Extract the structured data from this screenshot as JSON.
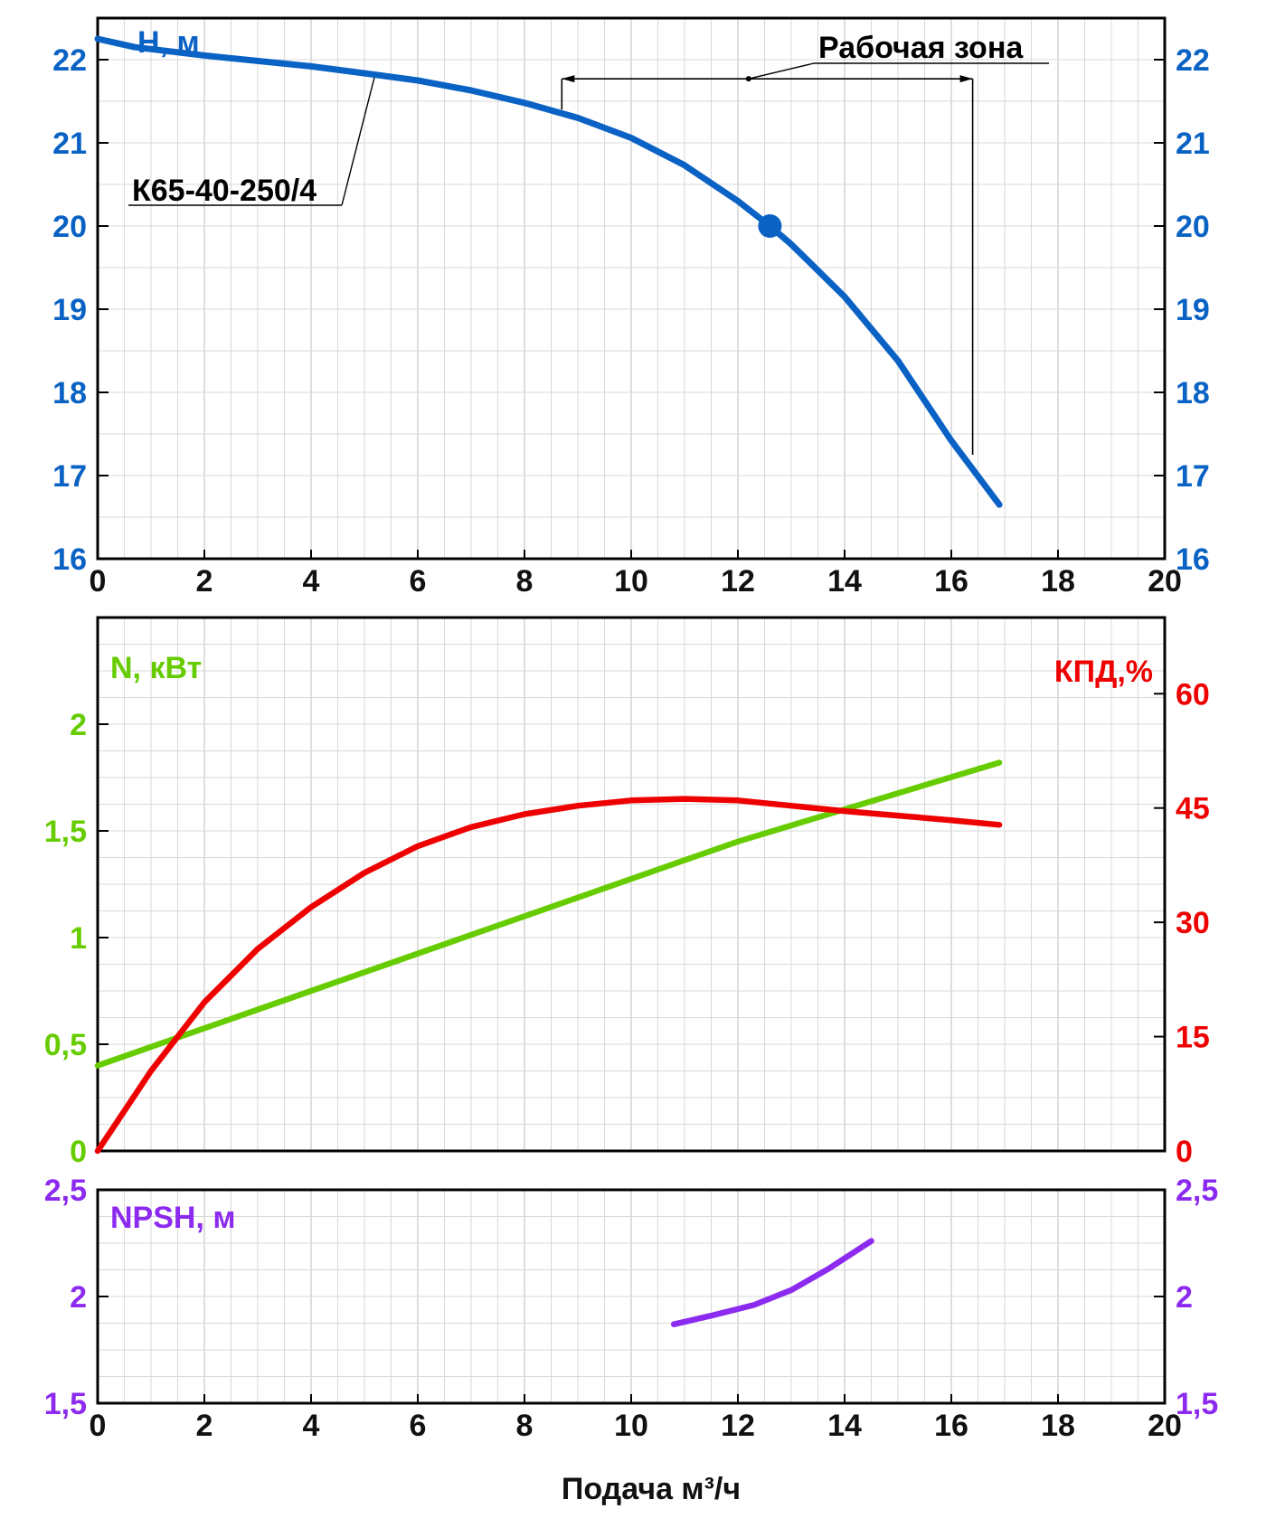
{
  "chart_data": [
    {
      "id": "head",
      "type": "line",
      "ylabel": "H, м",
      "xlim": [
        0,
        20
      ],
      "ylim": [
        16,
        22.5
      ],
      "xticks": [
        "0",
        "2",
        "4",
        "6",
        "8",
        "10",
        "12",
        "14",
        "16",
        "18",
        "20"
      ],
      "yticks": [
        "16",
        "17",
        "18",
        "19",
        "20",
        "21",
        "22"
      ],
      "grid": true,
      "color": "#0a62c4",
      "series": [
        {
          "name": "К65-40-250/4",
          "x": [
            0,
            0.7,
            2,
            4,
            5.2,
            6,
            7,
            8,
            9,
            10,
            11,
            12,
            12.6,
            13,
            14,
            15,
            16,
            16.9
          ],
          "y": [
            22.25,
            22.15,
            22.05,
            21.92,
            21.82,
            21.75,
            21.63,
            21.48,
            21.3,
            21.06,
            20.73,
            20.3,
            20.0,
            19.78,
            19.15,
            18.38,
            17.42,
            16.65
          ]
        }
      ],
      "operating_point": {
        "x": 12.6,
        "y": 20.0
      },
      "annotations": {
        "model": "К65-40-250/4",
        "working_zone": "Рабочая зона",
        "working_zone_range": [
          8.7,
          16.4
        ]
      }
    },
    {
      "id": "power_efficiency",
      "type": "line",
      "xlim": [
        0,
        20
      ],
      "ylim_left": [
        0,
        2.5
      ],
      "ylim_right": [
        0,
        70
      ],
      "ylabel_left": "N, кВт",
      "ylabel_right": "КПД,%",
      "yticks_left": [
        "0",
        "0,5",
        "1",
        "1,5",
        "2"
      ],
      "yticks_right": [
        "0",
        "15",
        "30",
        "45",
        "60"
      ],
      "grid": true,
      "series": [
        {
          "name": "N, кВт",
          "axis": "left",
          "color": "#66cc00",
          "x": [
            0,
            4,
            8,
            12,
            16.9
          ],
          "y": [
            0.4,
            0.75,
            1.1,
            1.45,
            1.82
          ]
        },
        {
          "name": "КПД,%",
          "axis": "right",
          "color": "#ee0000",
          "x": [
            0,
            1,
            2,
            3,
            4,
            5,
            6,
            7,
            8,
            9,
            10,
            11,
            12,
            13,
            14,
            15,
            16,
            16.9
          ],
          "y": [
            0,
            10.5,
            19.5,
            26.5,
            32,
            36.5,
            40,
            42.5,
            44.2,
            45.3,
            46.0,
            46.2,
            46.0,
            45.3,
            44.6,
            44.0,
            43.4,
            42.8
          ]
        }
      ]
    },
    {
      "id": "npsh",
      "type": "line",
      "ylabel": "NPSH, м",
      "xlim": [
        0,
        20
      ],
      "ylim": [
        1.5,
        2.5
      ],
      "xticks": [
        "0",
        "2",
        "4",
        "6",
        "8",
        "10",
        "12",
        "14",
        "16",
        "18",
        "20"
      ],
      "yticks": [
        "1,5",
        "2",
        "2,5"
      ],
      "xlabel": "Подача м³/ч",
      "grid": true,
      "color": "#8c2bef",
      "series": [
        {
          "name": "NPSH, м",
          "x": [
            10.8,
            11.5,
            12.3,
            13,
            13.7,
            14.5
          ],
          "y": [
            1.87,
            1.91,
            1.96,
            2.03,
            2.13,
            2.26
          ]
        }
      ]
    }
  ]
}
